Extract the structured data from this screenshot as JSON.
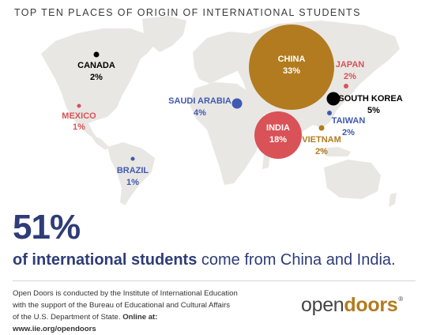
{
  "title": "TOP TEN PLACES OF ORIGIN OF INTERNATIONAL STUDENTS",
  "places": [
    {
      "id": "china",
      "name": "CHINA",
      "pct": "33%",
      "share": 33,
      "color": "#b27b1f"
    },
    {
      "id": "india",
      "name": "INDIA",
      "pct": "18%",
      "share": 18,
      "color": "#d95257"
    },
    {
      "id": "south-korea",
      "name": "SOUTH KOREA",
      "pct": "5%",
      "share": 5,
      "color": "#000000"
    },
    {
      "id": "saudi-arabia",
      "name": "SAUDI ARABIA",
      "pct": "4%",
      "share": 4,
      "color": "#3f5ab0"
    },
    {
      "id": "canada",
      "name": "CANADA",
      "pct": "2%",
      "share": 2,
      "color": "#000000"
    },
    {
      "id": "japan",
      "name": "JAPAN",
      "pct": "2%",
      "share": 2,
      "color": "#d95257"
    },
    {
      "id": "taiwan",
      "name": "TAIWAN",
      "pct": "2%",
      "share": 2,
      "color": "#3f5ab0"
    },
    {
      "id": "vietnam",
      "name": "VIETNAM",
      "pct": "2%",
      "share": 2,
      "color": "#b27b1f"
    },
    {
      "id": "mexico",
      "name": "MEXICO",
      "pct": "1%",
      "share": 1,
      "color": "#d95257"
    },
    {
      "id": "brazil",
      "name": "BRAZIL",
      "pct": "1%",
      "share": 1,
      "color": "#3f5ab0"
    }
  ],
  "headline": "51%",
  "subline_bold": "of international students",
  "subline_rest": " come from China and India.",
  "footer": {
    "line1": "Open Doors is conducted by the Institute of International Education",
    "line2": "with the support of the Bureau of Educational and Cultural Affairs",
    "line3_plain": "of the U.S. Department of State. ",
    "line3_bold": "Online at: www.iie.org/opendoors"
  },
  "logo": {
    "open": "open",
    "doors": "doors",
    "mark": "®"
  },
  "colors": {
    "navy": "#2e3c78",
    "land": "#e9e7e4",
    "gold": "#b27b1f",
    "red": "#d95257",
    "blue": "#3f5ab0"
  }
}
